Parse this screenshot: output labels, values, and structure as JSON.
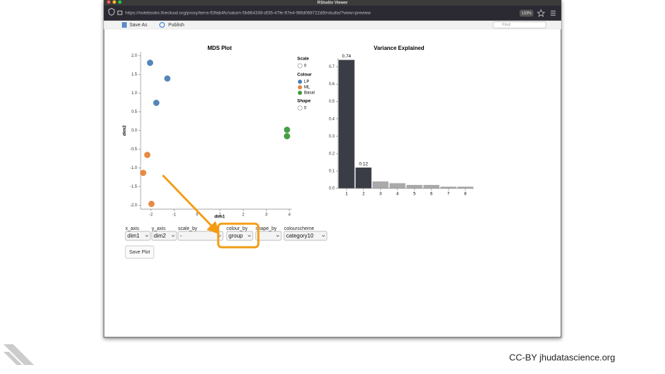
{
  "window": {
    "title": "RStudio Viewer",
    "url": "https://notebooks.firecloud.org/proxy/terra-93fab4fc/saturn-5b864338-df35-47fe-97e4-98fd068722d9/rstudio/?view=preview",
    "zoom": "133%"
  },
  "toolbar": {
    "save_as": "Save As",
    "publish": "Publish",
    "find": "Find"
  },
  "mds_plot": {
    "title": "MDS Plot",
    "x_label": "dim1",
    "y_label": "dim2",
    "xlim": [
      -2.45,
      4.1
    ],
    "ylim": [
      -2.1,
      2.1
    ],
    "xticks": [
      -2,
      -1,
      0,
      1,
      2,
      3,
      4
    ],
    "yticks": [
      {
        "value": 2,
        "label": "2.0"
      },
      1.5,
      {
        "value": 1,
        "label": "1.0"
      },
      0.5,
      {
        "value": 0,
        "label": "0.0"
      },
      -0.5,
      {
        "value": -1,
        "label": "-1.0"
      },
      -1.5,
      {
        "value": -2,
        "label": "-2.0"
      }
    ],
    "series": [
      {
        "name": "LP",
        "color": "#4a7fb5",
        "x": [
          -2.04,
          -1.29,
          -1.77
        ],
        "y": [
          1.81,
          1.39,
          0.74
        ]
      },
      {
        "name": "ML",
        "color": "#e8843a",
        "x": [
          -2.16,
          -2.34,
          -1.98
        ],
        "y": [
          -0.65,
          -1.13,
          -1.96
        ]
      },
      {
        "name": "Basal",
        "color": "#3c9a3a",
        "x": [
          3.9,
          3.9
        ],
        "y": [
          0.02,
          -0.15
        ]
      }
    ],
    "legend": {
      "scale_title": "Scale",
      "scale_value": "0",
      "colour_title": "Colour",
      "shape_title": "Shape",
      "shape_value": "0"
    }
  },
  "variance_plot": {
    "type": "bar",
    "title": "Variance Explained",
    "categories": [
      "1",
      "2",
      "3",
      "4",
      "5",
      "6",
      "7",
      "8"
    ],
    "values": [
      0.74,
      0.12,
      0.04,
      0.03,
      0.02,
      0.02,
      0.01,
      0.01
    ],
    "colors": [
      "#3a3d45",
      "#3a3d45",
      "#aaaaaa",
      "#aaaaaa",
      "#aaaaaa",
      "#aaaaaa",
      "#aaaaaa",
      "#aaaaaa"
    ],
    "labeled": [
      0,
      1
    ],
    "ylim": [
      0,
      0.75
    ],
    "yticks": [
      {
        "value": 0,
        "label": "0.0"
      },
      0.1,
      0.2,
      0.3,
      0.4,
      0.5,
      0.6,
      0.7
    ]
  },
  "controls": [
    {
      "label": "x_axis",
      "value": "dim1"
    },
    {
      "label": "y_axis",
      "value": "dim2"
    },
    {
      "label": "scale_by",
      "value": "-"
    },
    {
      "label": "colour_by",
      "value": "group"
    },
    {
      "label": "shape_by",
      "value": "-"
    },
    {
      "label": "colourscheme",
      "value": "category10"
    }
  ],
  "save_button": "Save Plot",
  "footer": "CC-BY  jhudatascience.org"
}
